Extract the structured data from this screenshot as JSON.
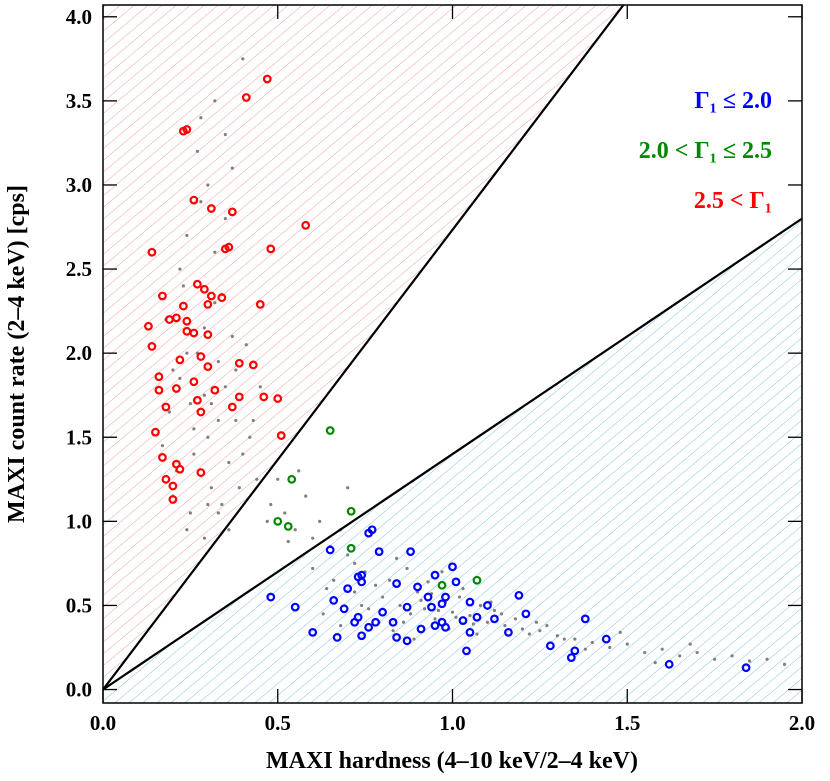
{
  "chart_data": {
    "type": "scatter",
    "xlabel": "MAXI hardness (4–10 keV/2–4 keV)",
    "ylabel": "MAXI count rate (2–4 keV) [cps]",
    "xlim": [
      0,
      2
    ],
    "ylim": [
      -0.08,
      4.07
    ],
    "xticks": [
      {
        "value": 0,
        "label": "0.0"
      },
      0.5,
      {
        "value": 1,
        "label": "1.0"
      },
      1.5,
      {
        "value": 2,
        "label": "2.0"
      }
    ],
    "yticks": [
      {
        "value": 0,
        "label": "0.0"
      },
      0.5,
      {
        "value": 1,
        "label": "1.0"
      },
      1.5,
      {
        "value": 2,
        "label": "2.0"
      },
      2.5,
      {
        "value": 3,
        "label": "3.0"
      },
      3.5,
      {
        "value": 4,
        "label": "4.0"
      }
    ],
    "reference_lines": [
      {
        "color": "#000000",
        "x": [
          0,
          1.5
        ],
        "y": [
          0,
          4.1
        ]
      },
      {
        "color": "#000000",
        "x": [
          0,
          2
        ],
        "y": [
          0,
          2.8
        ]
      }
    ],
    "series": [
      {
        "color": "#808080",
        "marker": "dot",
        "x": [
          0.18,
          0.2,
          0.22,
          0.25,
          0.27,
          0.3,
          0.32,
          0.35,
          0.38,
          0.4,
          0.21,
          0.24,
          0.28,
          0.31,
          0.34,
          0.37,
          0.26,
          0.29,
          0.33,
          0.23,
          0.19,
          0.17,
          0.36,
          0.42,
          0.44,
          0.3,
          0.27,
          0.25,
          0.32,
          0.35,
          0.22,
          0.29,
          0.38,
          0.41,
          0.33,
          0.2,
          0.26,
          0.31,
          0.24,
          0.34,
          0.28,
          0.37,
          0.45,
          0.39,
          0.3,
          0.36,
          0.4,
          0.43,
          0.32,
          0.35,
          0.48,
          0.5,
          0.52,
          0.55,
          0.58,
          0.6,
          0.62,
          0.65,
          0.68,
          0.7,
          0.72,
          0.56,
          0.64,
          0.75,
          0.8,
          0.78,
          0.85,
          0.88,
          0.9,
          0.92,
          0.95,
          0.98,
          1.0,
          1.02,
          1.05,
          1.08,
          1.1,
          1.12,
          1.15,
          1.18,
          1.2,
          1.22,
          1.25,
          1.3,
          1.35,
          1.4,
          1.45,
          1.5,
          1.55,
          1.6,
          1.65,
          1.7,
          1.75,
          1.8,
          1.85,
          1.9,
          1.95,
          0.82,
          0.86,
          0.94,
          0.99,
          1.03,
          1.07,
          0.87,
          0.91,
          0.96,
          1.01,
          1.06,
          1.11,
          0.76,
          0.83,
          0.93,
          0.97,
          1.14,
          1.24,
          1.32,
          0.7,
          0.74,
          0.79,
          0.66,
          0.72,
          0.84,
          0.89,
          1.27,
          1.38,
          1.48,
          1.58,
          1.68,
          0.6,
          0.63,
          0.68,
          0.47,
          0.53,
          0.33,
          0.29,
          0.24
        ],
        "y": [
          2.2,
          1.9,
          2.5,
          1.7,
          2.0,
          1.5,
          2.3,
          1.8,
          1.6,
          1.4,
          1.3,
          2.7,
          2.9,
          1.2,
          1.1,
          2.1,
          1.55,
          1.75,
          1.95,
          2.4,
          1.65,
          1.45,
          1.35,
          1.5,
          1.25,
          3.0,
          3.2,
          1.05,
          2.6,
          2.8,
          1.85,
          2.15,
          1.9,
          2.05,
          1.6,
          1.15,
          1.4,
          1.7,
          2.0,
          2.35,
          3.4,
          3.1,
          1.8,
          1.2,
          1.1,
          0.95,
          3.75,
          1.6,
          3.5,
          3.3,
          1.1,
          1.25,
          1.05,
          0.95,
          1.15,
          0.9,
          1.0,
          0.85,
          0.95,
          1.2,
          0.75,
          1.3,
          0.6,
          0.7,
          0.55,
          0.62,
          0.5,
          0.45,
          0.58,
          0.48,
          0.42,
          0.52,
          0.46,
          0.55,
          0.44,
          0.5,
          0.4,
          0.47,
          0.38,
          0.42,
          0.36,
          0.33,
          0.35,
          0.32,
          0.3,
          0.28,
          0.25,
          0.27,
          0.22,
          0.24,
          0.2,
          0.22,
          0.18,
          0.2,
          0.17,
          0.18,
          0.15,
          0.65,
          0.4,
          0.57,
          0.36,
          0.6,
          0.33,
          0.72,
          0.53,
          0.47,
          0.43,
          0.39,
          0.52,
          0.48,
          0.35,
          0.64,
          0.7,
          0.45,
          0.4,
          0.3,
          0.8,
          0.5,
          0.4,
          0.65,
          0.58,
          0.78,
          0.3,
          0.38,
          0.24,
          0.34,
          0.16,
          0.27,
          0.72,
          0.45,
          0.38,
          1.0,
          0.88,
          1.05,
          0.9,
          0.95
        ]
      },
      {
        "name": "Γ₁ ≤ 2.0",
        "color": "#0000ff",
        "marker": "ring",
        "x": [
          0.48,
          0.55,
          0.6,
          0.67,
          0.65,
          0.73,
          0.76,
          0.77,
          0.79,
          0.88,
          0.74,
          0.74,
          0.66,
          0.69,
          0.7,
          0.73,
          0.72,
          0.76,
          0.78,
          0.8,
          0.83,
          0.87,
          0.84,
          0.9,
          0.93,
          0.94,
          0.84,
          0.87,
          0.91,
          0.95,
          0.97,
          0.98,
          0.95,
          0.98,
          1.0,
          1.01,
          0.97,
          1.03,
          1.05,
          1.05,
          1.07,
          1.1,
          1.12,
          1.16,
          1.04,
          1.19,
          1.21,
          1.28,
          1.34,
          1.35,
          1.38,
          1.44,
          1.62,
          1.84,
          0.74
        ],
        "y": [
          0.55,
          0.49,
          0.34,
          0.31,
          0.83,
          0.67,
          0.93,
          0.95,
          0.82,
          0.82,
          0.64,
          0.68,
          0.53,
          0.48,
          0.6,
          0.43,
          0.4,
          0.37,
          0.4,
          0.46,
          0.4,
          0.49,
          0.63,
          0.61,
          0.55,
          0.49,
          0.31,
          0.29,
          0.36,
          0.38,
          0.4,
          0.37,
          0.68,
          0.55,
          0.73,
          0.64,
          0.51,
          0.41,
          0.34,
          0.52,
          0.43,
          0.5,
          0.42,
          0.34,
          0.23,
          0.56,
          0.45,
          0.26,
          0.19,
          0.23,
          0.42,
          0.3,
          0.15,
          0.13,
          0.32
        ]
      },
      {
        "name": "2.0 < Γ₁ ≤ 2.5",
        "color": "#008800",
        "marker": "ring",
        "x": [
          0.65,
          0.54,
          0.5,
          0.53,
          0.71,
          0.71,
          0.97,
          1.07
        ],
        "y": [
          1.54,
          1.25,
          1.0,
          0.97,
          1.06,
          0.84,
          0.62,
          0.65
        ]
      },
      {
        "name": "2.5 < Γ₁",
        "color": "#ff0000",
        "marker": "ring",
        "x": [
          0.47,
          0.41,
          0.24,
          0.23,
          0.26,
          0.31,
          0.37,
          0.14,
          0.36,
          0.35,
          0.48,
          0.58,
          0.17,
          0.19,
          0.21,
          0.13,
          0.23,
          0.27,
          0.29,
          0.31,
          0.3,
          0.34,
          0.45,
          0.24,
          0.26,
          0.3,
          0.14,
          0.24,
          0.22,
          0.28,
          0.16,
          0.16,
          0.21,
          0.26,
          0.39,
          0.43,
          0.3,
          0.32,
          0.18,
          0.27,
          0.39,
          0.46,
          0.5,
          0.15,
          0.28,
          0.37,
          0.51,
          0.17,
          0.21,
          0.22,
          0.18,
          0.28,
          0.2,
          0.2
        ],
        "y": [
          3.63,
          3.52,
          3.33,
          3.32,
          2.91,
          2.86,
          2.84,
          2.6,
          2.63,
          2.62,
          2.62,
          2.76,
          2.34,
          2.2,
          2.21,
          2.16,
          2.28,
          2.41,
          2.38,
          2.34,
          2.29,
          2.33,
          2.29,
          2.19,
          2.12,
          2.11,
          2.04,
          2.13,
          1.96,
          1.98,
          1.86,
          1.78,
          1.79,
          1.83,
          1.94,
          1.93,
          1.92,
          1.78,
          1.68,
          1.72,
          1.74,
          1.74,
          1.73,
          1.53,
          1.65,
          1.68,
          1.51,
          1.38,
          1.34,
          1.31,
          1.25,
          1.29,
          1.21,
          1.13
        ]
      }
    ]
  }
}
